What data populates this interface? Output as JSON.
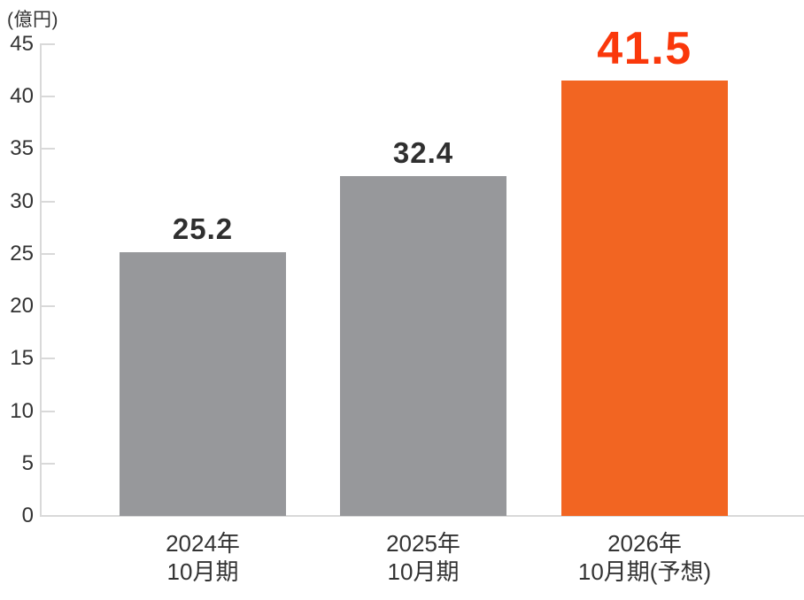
{
  "chart_data": {
    "type": "bar",
    "title": "",
    "unit_label": "(億円)",
    "xlabel": "",
    "ylabel": "(億円)",
    "ylim": [
      0,
      45
    ],
    "yticks": [
      0,
      5,
      10,
      15,
      20,
      25,
      30,
      35,
      40,
      45
    ],
    "grid": false,
    "legend": false,
    "categories": [
      "2024年10月期",
      "2025年10月期",
      "2026年10月期(予想)"
    ],
    "values": [
      25.2,
      32.4,
      41.5
    ],
    "bars": [
      {
        "category_lines": [
          "2024年",
          "10月期"
        ],
        "value": 25.2,
        "value_label": "25.2",
        "bar_color": "#97989b",
        "value_color": "#2f2f2f",
        "emphasized": false
      },
      {
        "category_lines": [
          "2025年",
          "10月期"
        ],
        "value": 32.4,
        "value_label": "32.4",
        "bar_color": "#97989b",
        "value_color": "#2f2f2f",
        "emphasized": false
      },
      {
        "category_lines": [
          "2026年",
          "10月期(予想)"
        ],
        "value": 41.5,
        "value_label": "41.5",
        "bar_color": "#f26522",
        "value_color": "#fa380b",
        "emphasized": true
      }
    ],
    "colors": {
      "axis": "#d9d9d9",
      "tick_text": "#333333",
      "bar_gray": "#97989b",
      "bar_highlight": "#f26522",
      "value_text": "#2f2f2f",
      "value_text_highlight": "#fa380b",
      "background": "#ffffff"
    }
  }
}
